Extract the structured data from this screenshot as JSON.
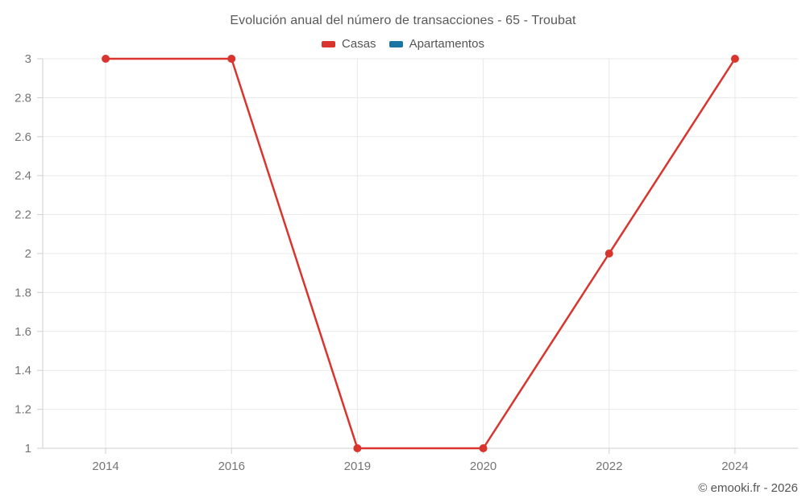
{
  "chart": {
    "title": "Evolución anual del número de transacciones - 65 - Troubat",
    "copyright": "© emooki.fr - 2026"
  },
  "legend": {
    "items": [
      {
        "label": "Casas",
        "color": "#d9342e"
      },
      {
        "label": "Apartamentos",
        "color": "#1a74a4"
      }
    ]
  },
  "chart_data": {
    "type": "line",
    "title": "Evolución anual del número de transacciones - 65 - Troubat",
    "categories": [
      "2014",
      "2016",
      "2019",
      "2020",
      "2022",
      "2024"
    ],
    "series": [
      {
        "name": "Casas",
        "color": "#d9342e",
        "values": [
          3,
          3,
          1,
          1,
          2,
          3
        ]
      },
      {
        "name": "Apartamentos",
        "color": "#1a74a4",
        "values": []
      }
    ],
    "xlabel": "",
    "ylabel": "",
    "ylim": [
      1,
      3
    ],
    "yticks": [
      1,
      1.2,
      1.4,
      1.6,
      1.8,
      2,
      2.2,
      2.4,
      2.6,
      2.8,
      3
    ],
    "grid": true,
    "legend_position": "top",
    "colors": {
      "grid_line": "#e8e8e8",
      "axis_line": "#cfcfcf",
      "tick_label": "#757575"
    }
  }
}
